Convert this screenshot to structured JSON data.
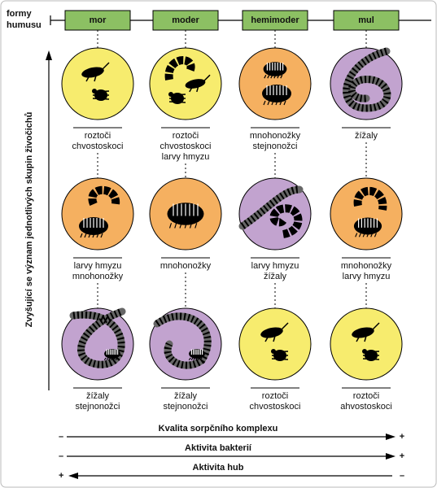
{
  "header": {
    "title_lines": [
      "formy",
      "humusu"
    ],
    "columns": [
      "mor",
      "moder",
      "hemimoder",
      "mul"
    ]
  },
  "y_axis": {
    "label": "Zvyšující se význam jednotlivých skupin živočichů"
  },
  "grid": {
    "rows": [
      [
        {
          "color": "#f7ec6e",
          "labels": [
            "roztoči",
            "chvostoskoci"
          ]
        },
        {
          "color": "#f7ec6e",
          "labels": [
            "roztoči",
            "chvostoskoci",
            "larvy hmyzu"
          ]
        },
        {
          "color": "#f5b060",
          "labels": [
            "mnohonožky",
            "stejnonožci"
          ]
        },
        {
          "color": "#c2a3cf",
          "labels": [
            "žížaly"
          ]
        }
      ],
      [
        {
          "color": "#f5b060",
          "labels": [
            "larvy hmyzu",
            "mnohonožky"
          ]
        },
        {
          "color": "#f5b060",
          "labels": [
            "mnohonožky"
          ]
        },
        {
          "color": "#c2a3cf",
          "labels": [
            "larvy hmyzu",
            "žížaly"
          ]
        },
        {
          "color": "#f5b060",
          "labels": [
            "mnohonožky",
            "larvy hmyzu"
          ]
        }
      ],
      [
        {
          "color": "#c2a3cf",
          "labels": [
            "žížaly",
            "stejnonožci"
          ]
        },
        {
          "color": "#c2a3cf",
          "labels": [
            "žížaly",
            "stejnonožci"
          ]
        },
        {
          "color": "#f7ec6e",
          "labels": [
            "roztoči",
            "chvostoskoci"
          ]
        },
        {
          "color": "#f7ec6e",
          "labels": [
            "roztoči",
            "ahvostoskoci"
          ]
        }
      ]
    ]
  },
  "gradients": [
    {
      "label": "Kvalita sorpčního komplexu",
      "left": "–",
      "right": "+"
    },
    {
      "label": "Aktivita bakterií",
      "left": "–",
      "right": "+"
    },
    {
      "label": "Aktivita hub",
      "left": "+",
      "right": "–"
    }
  ]
}
